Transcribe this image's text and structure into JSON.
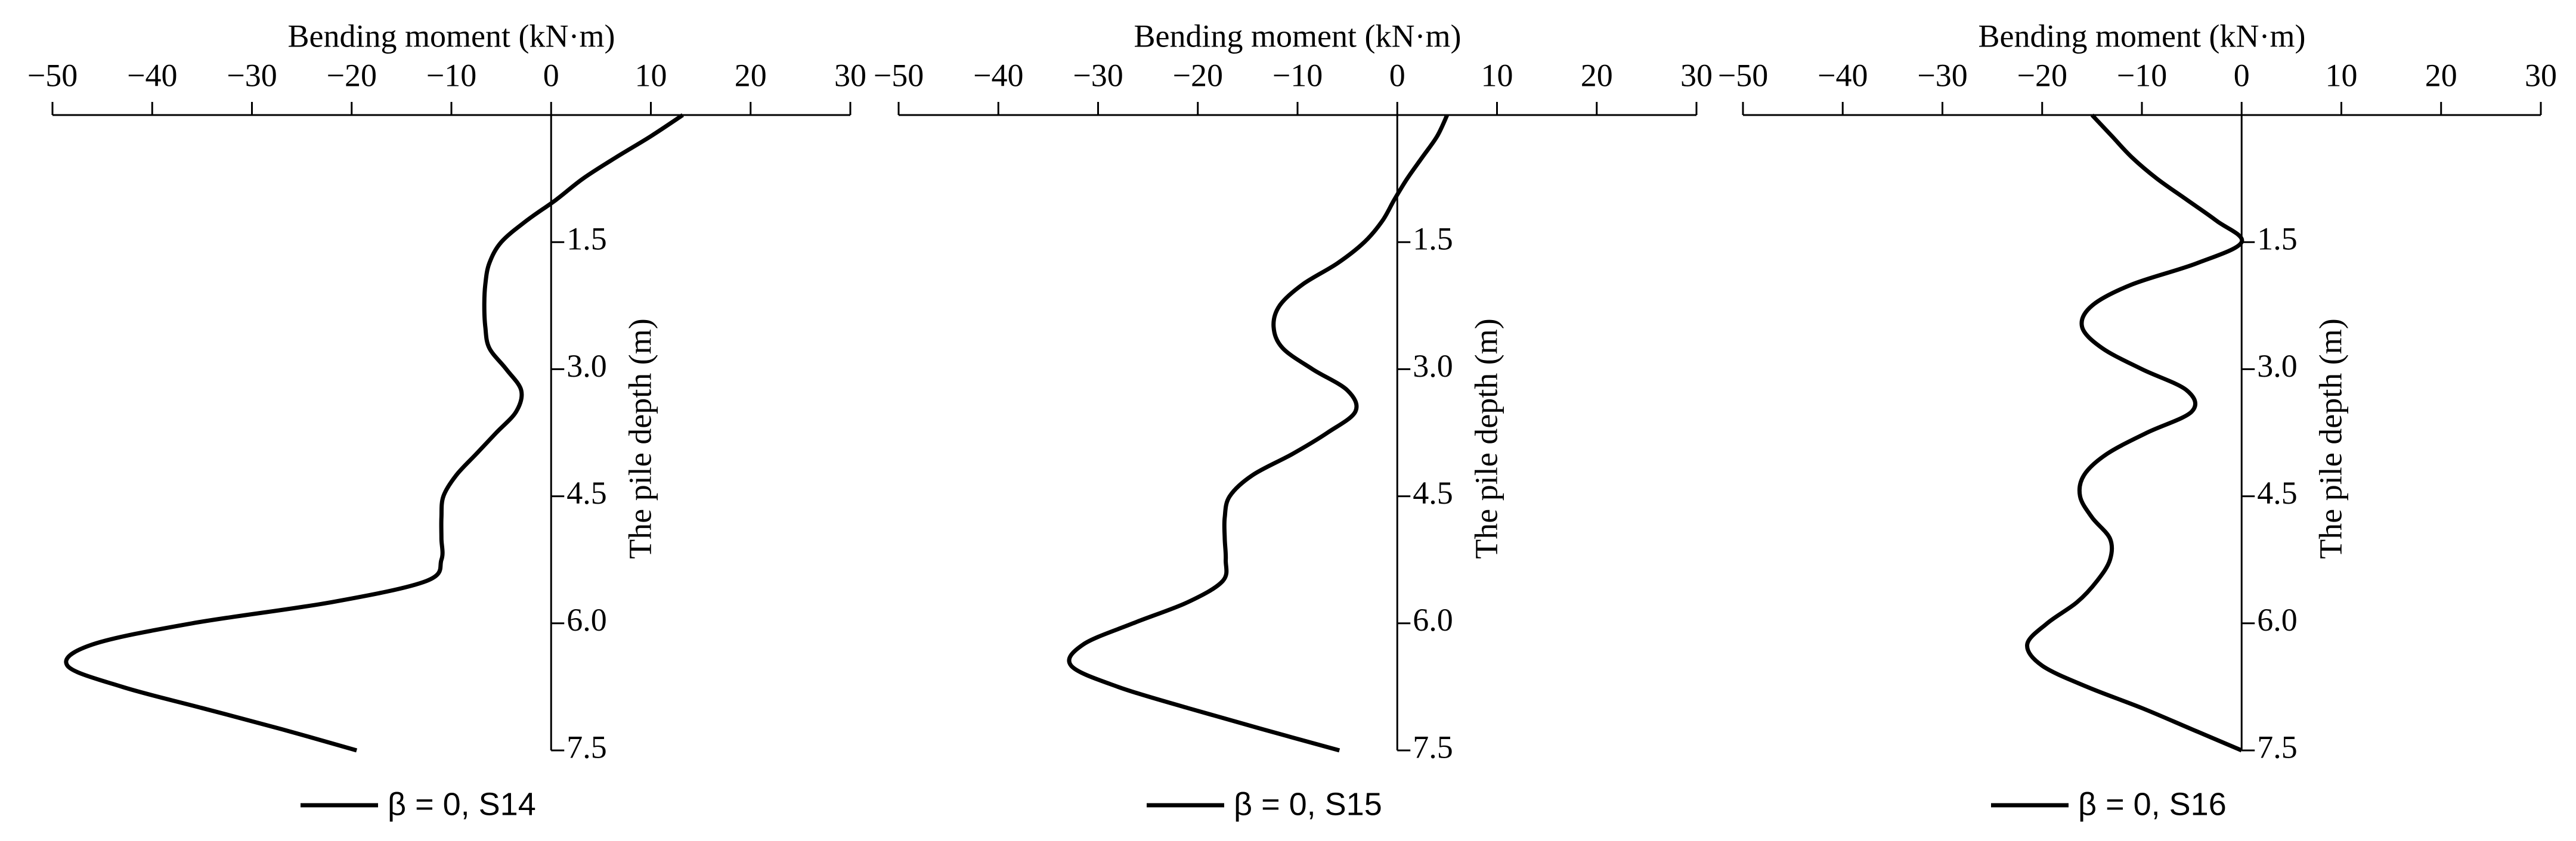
{
  "chart_data": [
    {
      "type": "line",
      "title": "Bending moment (kN·m)",
      "y_label": "The pile depth (m)",
      "x": [
        0,
        0.25,
        0.5,
        0.75,
        1,
        1.25,
        1.5,
        1.75,
        2,
        2.25,
        2.5,
        2.75,
        3,
        3.25,
        3.5,
        3.75,
        4,
        4.25,
        4.5,
        4.75,
        5,
        5.25,
        5.5,
        5.75,
        6,
        6.25,
        6.5,
        6.75,
        7,
        7.25,
        7.5
      ],
      "xlim": [
        0,
        7.5
      ],
      "xticks": [
        1.5,
        {
          "value": 3,
          "label": "3.0"
        },
        4.5,
        {
          "value": 6,
          "label": "6.0"
        },
        7.5
      ],
      "ylim": [
        -50,
        30
      ],
      "yticks": [
        {
          "value": -50,
          "label": "−50"
        },
        {
          "value": -40,
          "label": "−40"
        },
        {
          "value": -30,
          "label": "−30"
        },
        {
          "value": -20,
          "label": "−20"
        },
        {
          "value": -10,
          "label": "−10"
        },
        0,
        10,
        20,
        30
      ],
      "series": [
        {
          "name": "β = 0, S14",
          "color": "#000000",
          "values": [
            13.2,
            10,
            6.5,
            3.2,
            0.5,
            -2.5,
            -5,
            -6.2,
            -6.6,
            -6.7,
            -6.6,
            -6.2,
            -4.5,
            -3,
            -3.5,
            -5.5,
            -7.5,
            -9.5,
            -10.8,
            -11,
            -11,
            -11,
            -12.5,
            -22,
            -36,
            -46,
            -48.5,
            -43,
            -35,
            -27,
            -19.5
          ]
        }
      ]
    },
    {
      "type": "line",
      "title": "Bending moment (kN·m)",
      "y_label": "The pile depth (m)",
      "x": [
        0,
        0.25,
        0.5,
        0.75,
        1,
        1.25,
        1.5,
        1.75,
        2,
        2.25,
        2.5,
        2.75,
        3,
        3.25,
        3.5,
        3.75,
        4,
        4.25,
        4.5,
        4.75,
        5,
        5.25,
        5.5,
        5.75,
        6,
        6.25,
        6.5,
        6.75,
        7,
        7.25,
        7.5
      ],
      "xlim": [
        0,
        7.5
      ],
      "xticks": [
        1.5,
        {
          "value": 3,
          "label": "3.0"
        },
        4.5,
        {
          "value": 6,
          "label": "6.0"
        },
        7.5
      ],
      "ylim": [
        -50,
        30
      ],
      "yticks": [
        {
          "value": -50,
          "label": "−50"
        },
        {
          "value": -40,
          "label": "−40"
        },
        {
          "value": -30,
          "label": "−30"
        },
        {
          "value": -20,
          "label": "−20"
        },
        {
          "value": -10,
          "label": "−10"
        },
        0,
        10,
        20,
        30
      ],
      "series": [
        {
          "name": "β = 0, S15",
          "color": "#000000",
          "values": [
            5,
            4,
            2.5,
            1,
            -0.3,
            -1.5,
            -3.3,
            -6,
            -9.5,
            -11.8,
            -12.4,
            -11.5,
            -8.5,
            -5,
            -4.2,
            -7,
            -10.5,
            -14.5,
            -16.8,
            -17.3,
            -17.3,
            -17.2,
            -17.5,
            -21,
            -26.5,
            -31.5,
            -32.7,
            -28,
            -21,
            -13.5,
            -5.8
          ]
        }
      ]
    },
    {
      "type": "line",
      "title": "Bending moment (kN·m)",
      "y_label": "The pile depth (m)",
      "x": [
        0,
        0.25,
        0.5,
        0.75,
        1,
        1.25,
        1.5,
        1.75,
        2,
        2.25,
        2.5,
        2.75,
        3,
        3.25,
        3.5,
        3.75,
        4,
        4.25,
        4.5,
        4.75,
        5,
        5.25,
        5.5,
        5.75,
        6,
        6.25,
        6.5,
        6.75,
        7,
        7.25,
        7.5
      ],
      "xlim": [
        0,
        7.5
      ],
      "xticks": [
        1.5,
        {
          "value": 3,
          "label": "3.0"
        },
        4.5,
        {
          "value": 6,
          "label": "6.0"
        },
        7.5
      ],
      "ylim": [
        -50,
        30
      ],
      "yticks": [
        {
          "value": -50,
          "label": "−50"
        },
        {
          "value": -40,
          "label": "−40"
        },
        {
          "value": -30,
          "label": "−30"
        },
        {
          "value": -20,
          "label": "−20"
        },
        {
          "value": -10,
          "label": "−10"
        },
        0,
        10,
        20,
        30
      ],
      "series": [
        {
          "name": "β = 0, S16",
          "color": "#000000",
          "values": [
            -15,
            -13,
            -11,
            -8.5,
            -5.5,
            -2.5,
            0,
            -4.5,
            -11,
            -15,
            -16,
            -14,
            -10,
            -5.5,
            -5,
            -9.5,
            -13.5,
            -15.8,
            -16.2,
            -15,
            -13.2,
            -13.2,
            -14.5,
            -16.5,
            -19.5,
            -21.5,
            -20,
            -15.5,
            -10,
            -5,
            0
          ]
        }
      ]
    }
  ]
}
